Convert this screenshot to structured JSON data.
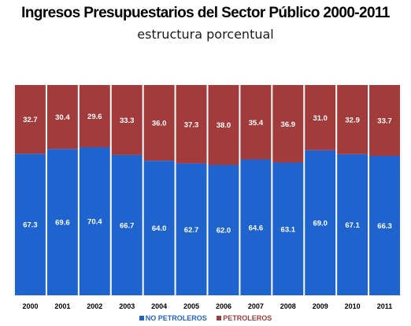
{
  "chart_data": {
    "type": "bar",
    "stacked": true,
    "title": "Ingresos Presupuestarios del Sector Público 2000-2011",
    "subtitle": "estructura porcentual",
    "categories": [
      "2000",
      "2001",
      "2002",
      "2003",
      "2004",
      "2005",
      "2006",
      "2007",
      "2008",
      "2009",
      "2010",
      "2011"
    ],
    "series": [
      {
        "name": "NO PETROLEROS",
        "color": "#1f63cf",
        "label_color": "#ffffff",
        "values": [
          67.3,
          69.6,
          70.4,
          66.7,
          64.0,
          62.7,
          62.0,
          64.6,
          63.1,
          69.0,
          67.1,
          66.3
        ]
      },
      {
        "name": "PETROLEROS",
        "color": "#a23b3b",
        "label_color": "#ffffff",
        "values": [
          32.7,
          30.4,
          29.6,
          33.3,
          36.0,
          37.3,
          38.0,
          35.4,
          36.9,
          31.0,
          32.9,
          33.7
        ]
      }
    ],
    "ylim": [
      0,
      100
    ],
    "legend_position": "bottom",
    "grid": false
  }
}
